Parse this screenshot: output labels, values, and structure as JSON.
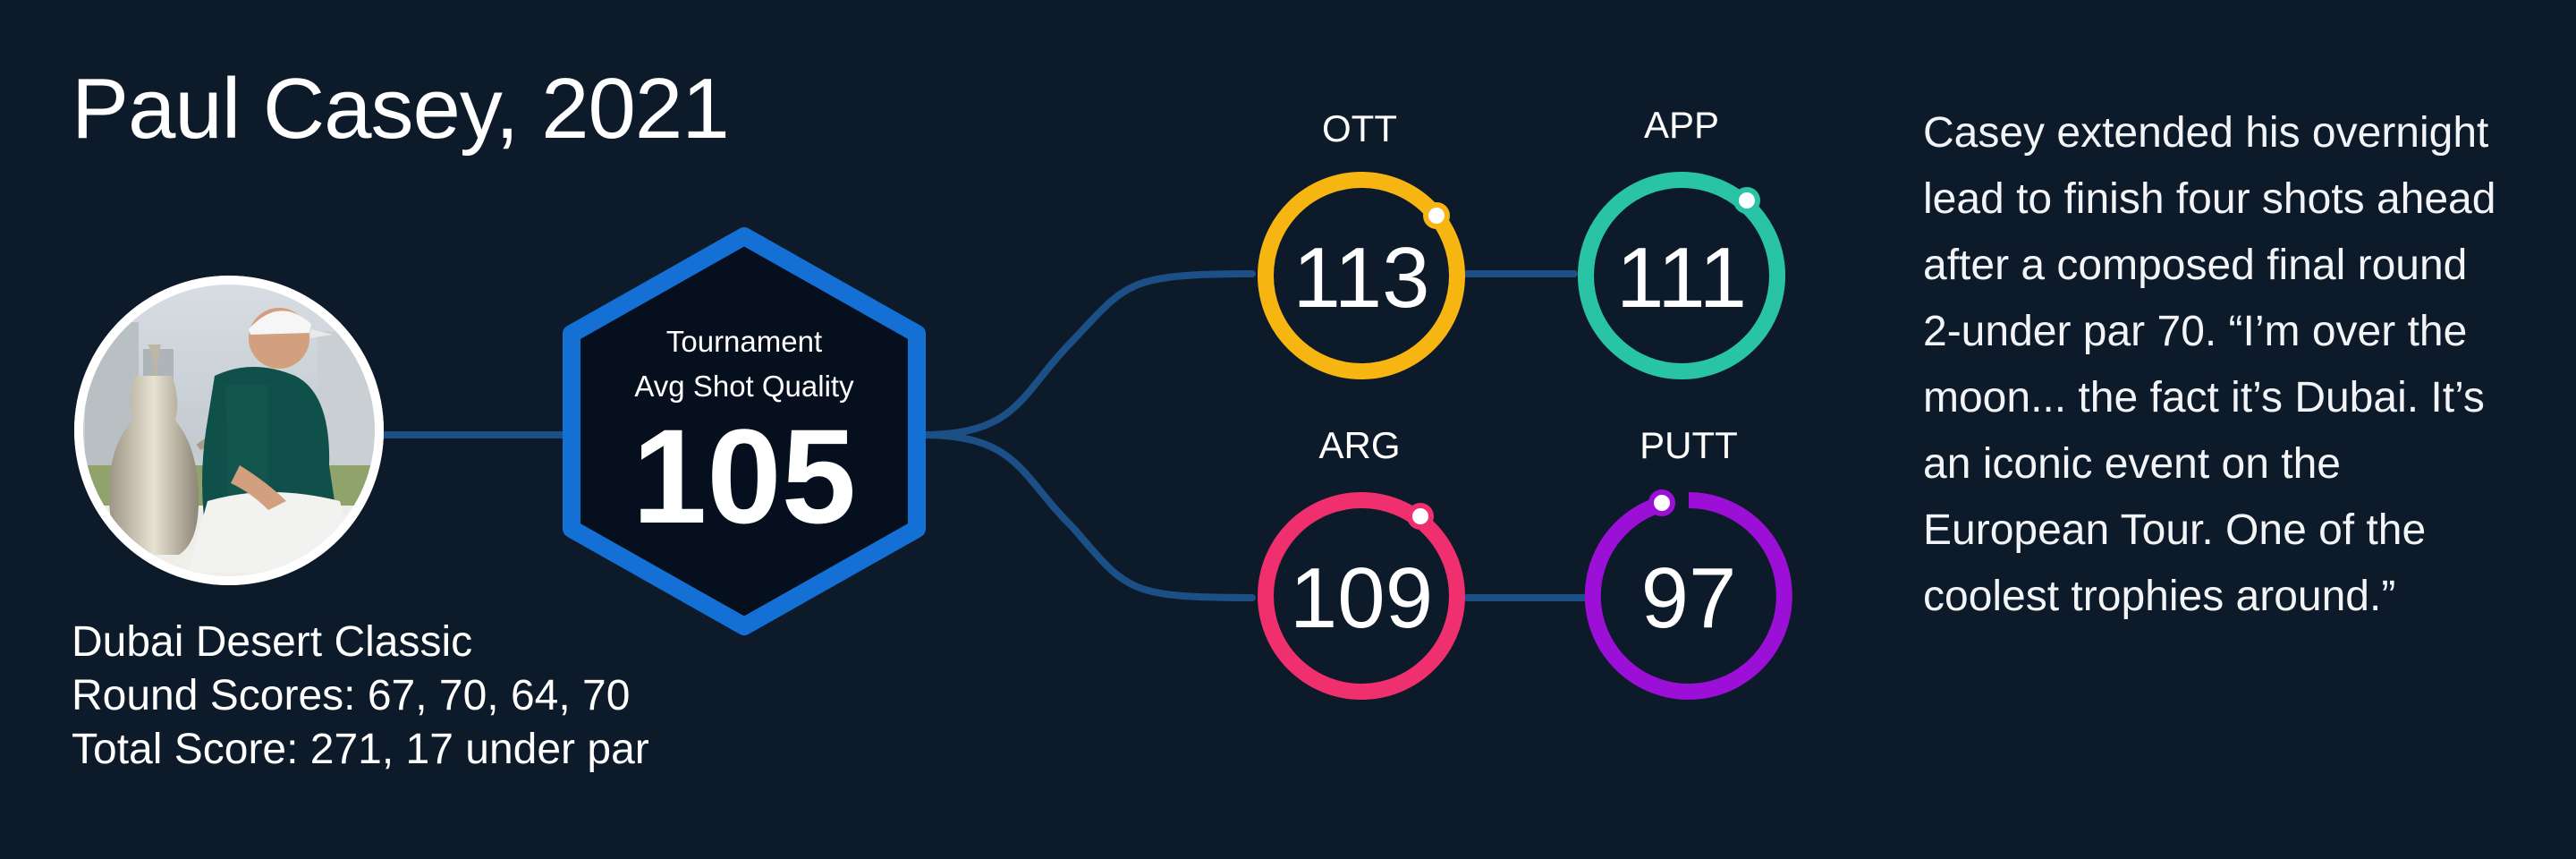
{
  "title": "Paul Casey, 2021",
  "tournament": {
    "name": "Dubai Desert Classic",
    "round_scores": "Round Scores: 67, 70, 64, 70",
    "total_score": "Total Score: 271, 17 under par"
  },
  "hexagon": {
    "label_line1": "Tournament",
    "label_line2": "Avg Shot Quality",
    "value": "105",
    "color": "#1570d6"
  },
  "metrics": [
    {
      "key": "ott",
      "label": "OTT",
      "value": "113",
      "color": "#f7b512"
    },
    {
      "key": "app",
      "label": "APP",
      "value": "111",
      "color": "#29c4a6"
    },
    {
      "key": "arg",
      "label": "ARG",
      "value": "109",
      "color": "#ef2f6e"
    },
    {
      "key": "putt",
      "label": "PUTT",
      "value": "97",
      "color": "#9b0fd6"
    }
  ],
  "quote": "Casey extended his overnight lead to finish four shots ahead after a composed final round 2-under par 70. “I’m over the moon... the fact it’s Dubai. It’s an iconic event on the European Tour. One of the coolest trophies around.”",
  "colors": {
    "background": "#0c1a29",
    "connector": "#1b4f86"
  }
}
